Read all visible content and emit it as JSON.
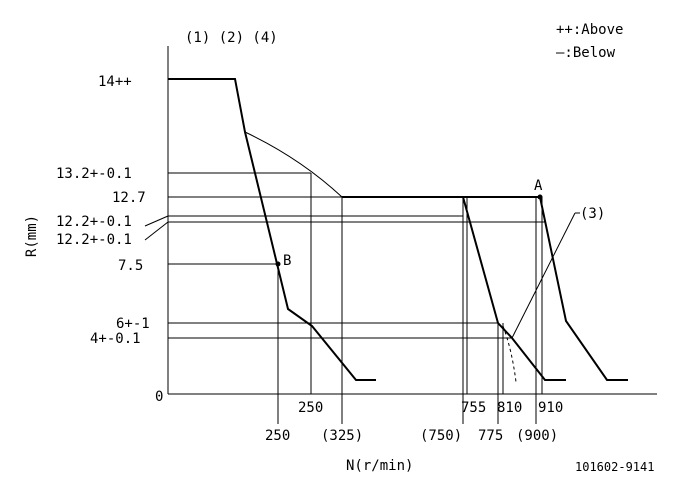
{
  "header": {
    "notes": "(1) (2) (4)"
  },
  "legend": {
    "above": "++:Above",
    "below": "—:Below"
  },
  "axes": {
    "y_label": "R(mm)",
    "x_label": "N(r/min)"
  },
  "y_ticks": {
    "t14": "14++",
    "t132": "13.2+-0.1",
    "t127": "12.7",
    "t122a": "12.2+-0.1",
    "t122b": "12.2+-0.1",
    "t75": "7.5",
    "t6": "6+-1",
    "t4": "4+-0.1",
    "t0": "0"
  },
  "x_ticks": {
    "x250_upper": "250",
    "x250_lower": "250",
    "x325": "(325)",
    "x750": "(750)",
    "x755": "755",
    "x775": "775",
    "x810": "810",
    "x900": "(900)",
    "x910": "910"
  },
  "points": {
    "a": "A",
    "b": "B"
  },
  "callout": "(3)",
  "figure_id": "101602-9141"
}
